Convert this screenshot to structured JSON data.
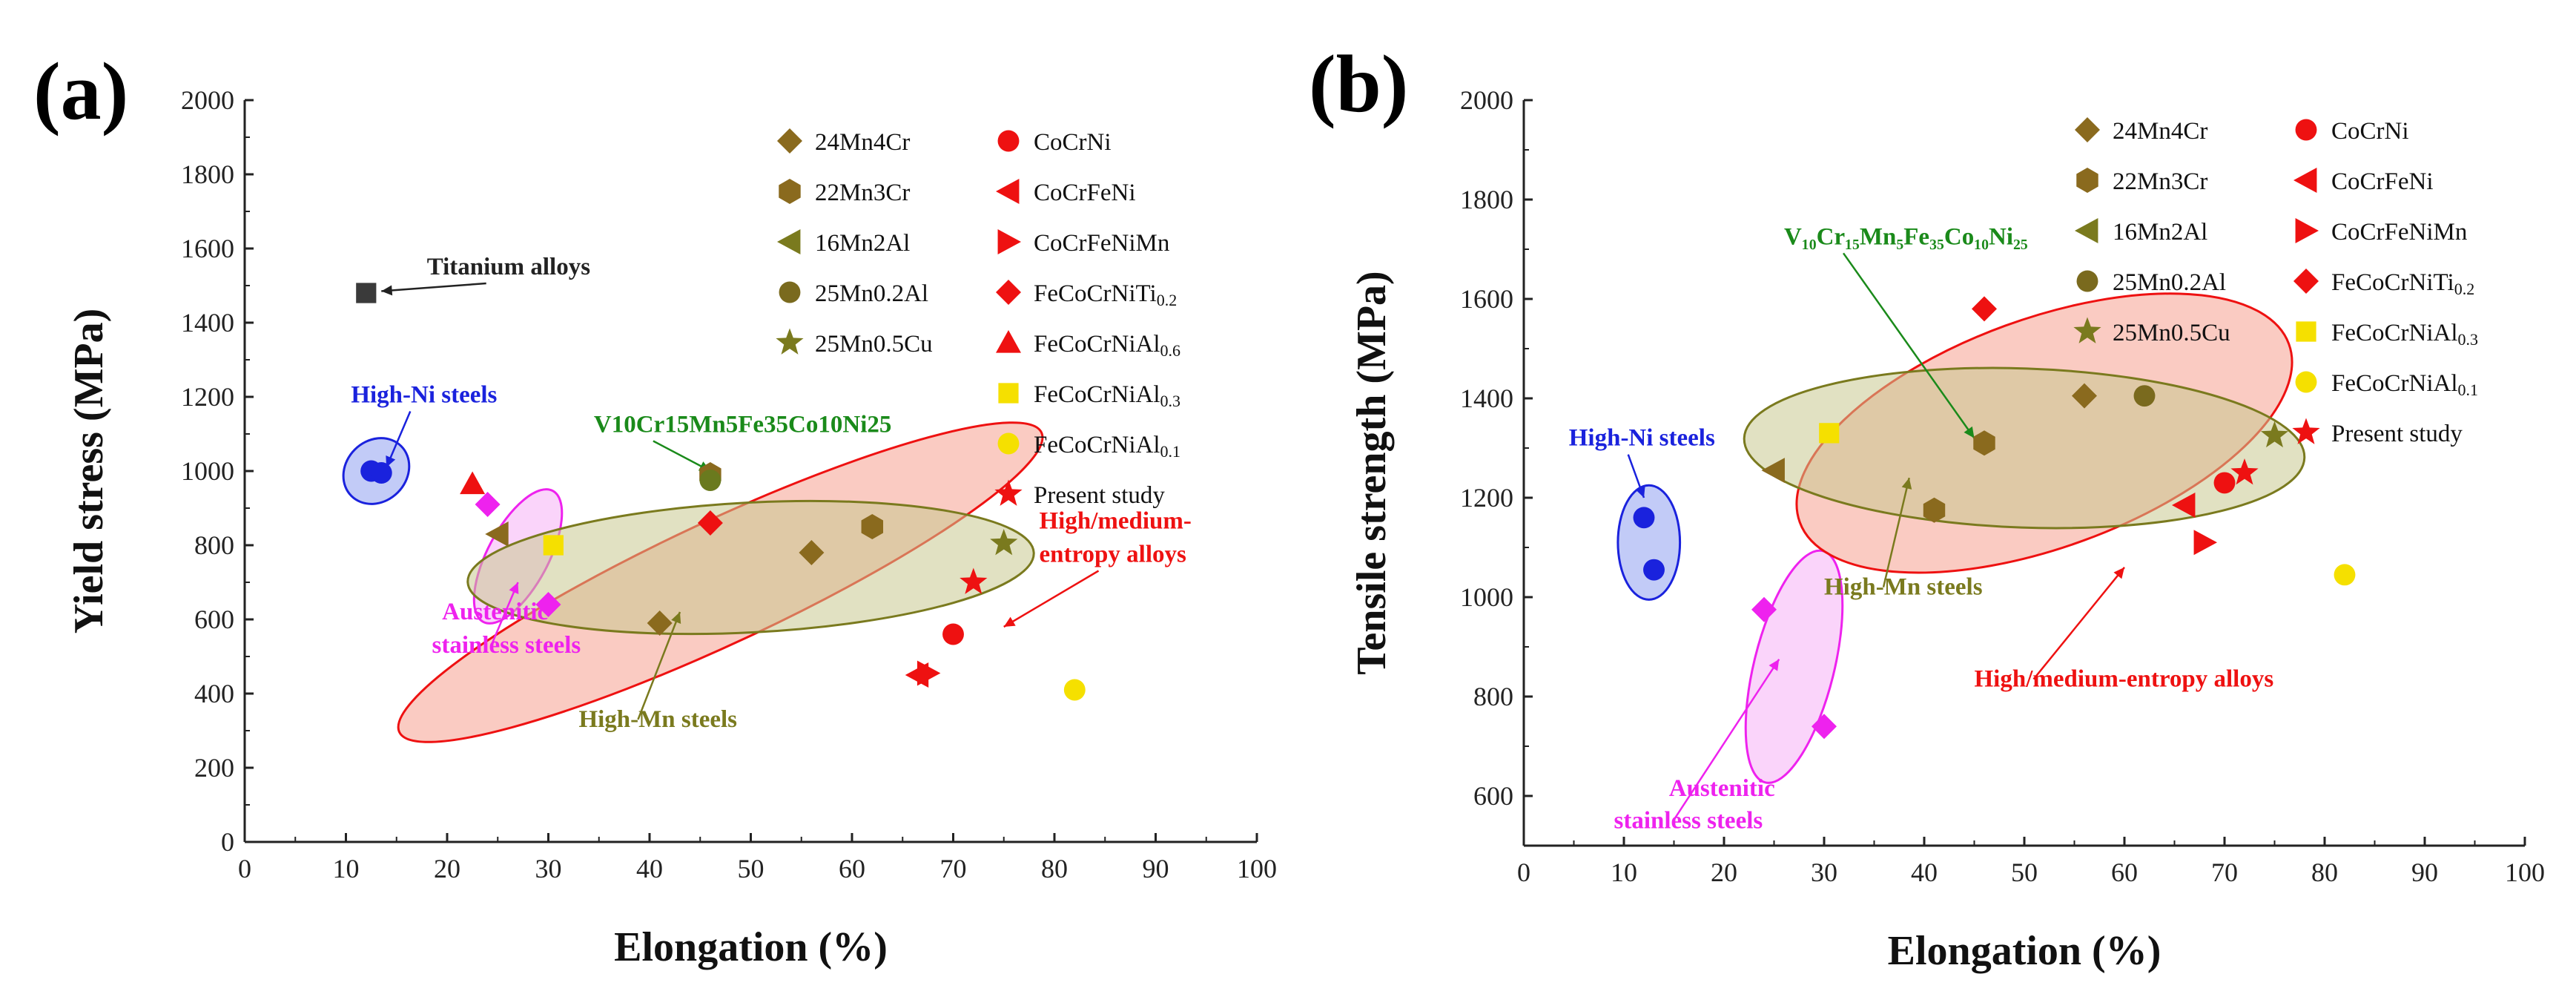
{
  "figure_title": "",
  "colors": {
    "olive": "#7a7a1e",
    "olive_fill": "#8f8f2a",
    "red": "#ee1111",
    "yellow": "#f5e000",
    "gray": "#3a3a3a",
    "blue": "#1a22dd",
    "magenta": "#ee22ee",
    "green": "#1a8a1a"
  },
  "chart_data": [
    {
      "type": "scatter",
      "panel_label": "(a)",
      "title": "",
      "xlabel": "Elongation (%)",
      "ylabel": "Yield stress (MPa)",
      "xlim": [
        0,
        100
      ],
      "ylim": [
        0,
        2000
      ],
      "xticks": [
        "0",
        "10",
        "20",
        "30",
        "40",
        "50",
        "60",
        "70",
        "80",
        "90",
        "100"
      ],
      "yticks": [
        "0",
        "200",
        "400",
        "600",
        "800",
        "1000",
        "1200",
        "1400",
        "1600",
        "1800",
        "2000"
      ],
      "grid": false,
      "legend_position": "top-right",
      "legend": [
        {
          "name": "24Mn4Cr",
          "marker": "diamond",
          "color": "#8a6a1e"
        },
        {
          "name": "22Mn3Cr",
          "marker": "hexagon",
          "color": "#8a6a1e"
        },
        {
          "name": "16Mn2Al",
          "marker": "triangle-left",
          "color": "#7a7a1e"
        },
        {
          "name": "25Mn0.2Al",
          "marker": "circle",
          "color": "#7a6a1e"
        },
        {
          "name": "25Mn0.5Cu",
          "marker": "star",
          "color": "#7a7a1e"
        },
        {
          "name": "CoCrNi",
          "marker": "circle",
          "color": "#ee1111"
        },
        {
          "name": "CoCrFeNi",
          "marker": "triangle-left",
          "color": "#ee1111"
        },
        {
          "name": "CoCrFeNiMn",
          "marker": "triangle-right",
          "color": "#ee1111"
        },
        {
          "name": "FeCoCrNiTi",
          "sub": "0.2",
          "marker": "diamond",
          "color": "#ee1111"
        },
        {
          "name": "FeCoCrNiAl",
          "sub": "0.6",
          "marker": "triangle-up",
          "color": "#ee1111"
        },
        {
          "name": "FeCoCrNiAl",
          "sub": "0.3",
          "marker": "square",
          "color": "#f5e000"
        },
        {
          "name": "FeCoCrNiAl",
          "sub": "0.1",
          "marker": "circle",
          "color": "#f5e000"
        },
        {
          "name": "Present study",
          "marker": "star",
          "color": "#ee1111"
        }
      ],
      "series": [
        {
          "name": "Titanium alloys",
          "marker": "square",
          "color": "#3a3a3a",
          "points": [
            [
              12,
              1480
            ]
          ]
        },
        {
          "name": "High-Ni steels",
          "marker": "circle",
          "color": "#1a22dd",
          "points": [
            [
              12.5,
              1000
            ],
            [
              13.5,
              995
            ]
          ]
        },
        {
          "name": "Austenitic stainless steels",
          "marker": "diamond",
          "color": "#ee22ee",
          "points": [
            [
              24,
              910
            ],
            [
              30,
              640
            ]
          ]
        },
        {
          "name": "24Mn4Cr",
          "marker": "diamond",
          "color": "#8a6a1e",
          "points": [
            [
              41,
              590
            ],
            [
              56,
              780
            ]
          ]
        },
        {
          "name": "22Mn3Cr",
          "marker": "hexagon",
          "color": "#8a6a1e",
          "points": [
            [
              46,
              990
            ],
            [
              62,
              850
            ]
          ]
        },
        {
          "name": "16Mn2Al",
          "marker": "triangle-left",
          "color": "#8a6a1e",
          "points": [
            [
              25,
              830
            ]
          ]
        },
        {
          "name": "25Mn0.2Al",
          "marker": "circle",
          "color": "#6a7a1e",
          "points": [
            [
              46,
              975
            ]
          ]
        },
        {
          "name": "25Mn0.5Cu",
          "marker": "star",
          "color": "#7a7a1e",
          "points": [
            [
              75,
              805
            ]
          ]
        },
        {
          "name": "CoCrNi",
          "marker": "circle",
          "color": "#ee1111",
          "points": [
            [
              70,
              560
            ]
          ]
        },
        {
          "name": "CoCrFeNi",
          "marker": "triangle-left",
          "color": "#ee1111",
          "points": [
            [
              66.5,
              450
            ]
          ]
        },
        {
          "name": "CoCrFeNiMn",
          "marker": "triangle-right",
          "color": "#ee1111",
          "points": [
            [
              67.5,
              455
            ]
          ]
        },
        {
          "name": "FeCoCrNiTi0.2",
          "marker": "diamond",
          "color": "#ee1111",
          "points": [
            [
              46,
              860
            ]
          ]
        },
        {
          "name": "FeCoCrNiAl0.6",
          "marker": "triangle-up",
          "color": "#ee1111",
          "points": [
            [
              22.5,
              965
            ]
          ]
        },
        {
          "name": "FeCoCrNiAl0.3",
          "marker": "square",
          "color": "#f5e000",
          "points": [
            [
              30.5,
              800
            ]
          ]
        },
        {
          "name": "FeCoCrNiAl0.1",
          "marker": "circle",
          "color": "#f5e000",
          "points": [
            [
              82,
              410
            ]
          ]
        },
        {
          "name": "Present study",
          "marker": "star",
          "color": "#ee1111",
          "points": [
            [
              72,
              700
            ]
          ]
        }
      ],
      "regions": [
        {
          "name": "High-Ni steels",
          "center": [
            13,
            1000
          ],
          "rx": 3,
          "ry": 95,
          "rotate": -45,
          "fill": "#8fa0f0",
          "stroke": "#1a22dd"
        },
        {
          "name": "Austenitic stainless steels",
          "center": [
            27,
            770
          ],
          "rx": 3,
          "ry": 200,
          "rotate": -28,
          "fill": "#f5b0f5",
          "stroke": "#ee22ee"
        },
        {
          "name": "High/medium-entropy alloys",
          "center": [
            47,
            700
          ],
          "rx": 35,
          "ry": 165,
          "rotate": 25,
          "fill": "#f5a090",
          "stroke": "#ee1111"
        },
        {
          "name": "High-Mn steels",
          "center": [
            50,
            740
          ],
          "rx": 28,
          "ry": 175,
          "rotate": 3,
          "fill": "#c8c890",
          "stroke": "#7a7a1e"
        }
      ],
      "annotations": [
        {
          "text": "Titanium alloys",
          "color": "#222222",
          "at": [
            18,
            1530
          ],
          "arrow_to": [
            13.5,
            1485
          ]
        },
        {
          "text": "High-Ni steels",
          "color": "#1a22dd",
          "at": [
            10.5,
            1185
          ],
          "arrow_to": [
            14,
            1010
          ]
        },
        {
          "text": "V10Cr15Mn5Fe35Co10Ni25",
          "color": "#1a8a1a",
          "at": [
            34.5,
            1105
          ],
          "arrow_to": [
            46,
            1000
          ]
        },
        {
          "text": "High/medium-",
          "color": "#ee1111",
          "at": [
            78.5,
            845
          ]
        },
        {
          "text": "entropy alloys",
          "color": "#ee1111",
          "at": [
            78.5,
            755
          ],
          "arrow_to": [
            75,
            580
          ]
        },
        {
          "text": "Austenitic",
          "color": "#ee22ee",
          "at": [
            19.5,
            600
          ]
        },
        {
          "text": "stainless steels",
          "color": "#ee22ee",
          "at": [
            18.5,
            510
          ],
          "arrow_to": [
            27,
            700
          ]
        },
        {
          "text": "High-Mn steels",
          "color": "#7a7a1e",
          "at": [
            33,
            310
          ],
          "arrow_to": [
            43,
            620
          ]
        }
      ]
    },
    {
      "type": "scatter",
      "panel_label": "(b)",
      "title": "",
      "xlabel": "Elongation (%)",
      "ylabel": "Tensile strength (MPa)",
      "xlim": [
        0,
        100
      ],
      "ylim": [
        500,
        2000
      ],
      "xticks": [
        "0",
        "10",
        "20",
        "30",
        "40",
        "50",
        "60",
        "70",
        "80",
        "90",
        "100"
      ],
      "yticks": [
        "600",
        "800",
        "1000",
        "1200",
        "1400",
        "1600",
        "1800",
        "2000"
      ],
      "grid": false,
      "legend_position": "top-right",
      "legend": [
        {
          "name": "24Mn4Cr",
          "marker": "diamond",
          "color": "#8a6a1e"
        },
        {
          "name": "22Mn3Cr",
          "marker": "hexagon",
          "color": "#8a6a1e"
        },
        {
          "name": "16Mn2Al",
          "marker": "triangle-left",
          "color": "#7a7a1e"
        },
        {
          "name": "25Mn0.2Al",
          "marker": "circle",
          "color": "#7a6a1e"
        },
        {
          "name": "25Mn0.5Cu",
          "marker": "star",
          "color": "#7a7a1e"
        },
        {
          "name": "CoCrNi",
          "marker": "circle",
          "color": "#ee1111"
        },
        {
          "name": "CoCrFeNi",
          "marker": "triangle-left",
          "color": "#ee1111"
        },
        {
          "name": "CoCrFeNiMn",
          "marker": "triangle-right",
          "color": "#ee1111"
        },
        {
          "name": "FeCoCrNiTi",
          "sub": "0.2",
          "marker": "diamond",
          "color": "#ee1111"
        },
        {
          "name": "FeCoCrNiAl",
          "sub": "0.3",
          "marker": "square",
          "color": "#f5e000"
        },
        {
          "name": "FeCoCrNiAl",
          "sub": "0.1",
          "marker": "circle",
          "color": "#f5e000"
        },
        {
          "name": "Present study",
          "marker": "star",
          "color": "#ee1111"
        }
      ],
      "series": [
        {
          "name": "High-Ni steels",
          "marker": "circle",
          "color": "#1a22dd",
          "points": [
            [
              12,
              1160
            ],
            [
              13,
              1055
            ]
          ]
        },
        {
          "name": "Austenitic stainless steels",
          "marker": "diamond",
          "color": "#ee22ee",
          "points": [
            [
              24,
              975
            ],
            [
              30,
              740
            ]
          ]
        },
        {
          "name": "24Mn4Cr",
          "marker": "diamond",
          "color": "#8a6a1e",
          "points": [
            [
              56,
              1405
            ]
          ]
        },
        {
          "name": "22Mn3Cr",
          "marker": "hexagon",
          "color": "#8a6a1e",
          "points": [
            [
              41,
              1175
            ],
            [
              46,
              1310
            ]
          ]
        },
        {
          "name": "16Mn2Al",
          "marker": "triangle-left",
          "color": "#8a6a1e",
          "points": [
            [
              25,
              1255
            ]
          ]
        },
        {
          "name": "25Mn0.2Al",
          "marker": "circle",
          "color": "#7a6a1e",
          "points": [
            [
              62,
              1405
            ]
          ]
        },
        {
          "name": "25Mn0.5Cu",
          "marker": "star",
          "color": "#7a7a1e",
          "points": [
            [
              75,
              1325
            ]
          ]
        },
        {
          "name": "CoCrNi",
          "marker": "circle",
          "color": "#ee1111",
          "points": [
            [
              70,
              1230
            ]
          ]
        },
        {
          "name": "CoCrFeNi",
          "marker": "triangle-left",
          "color": "#ee1111",
          "points": [
            [
              66,
              1185
            ]
          ]
        },
        {
          "name": "CoCrFeNiMn",
          "marker": "triangle-right",
          "color": "#ee1111",
          "points": [
            [
              68,
              1110
            ]
          ]
        },
        {
          "name": "FeCoCrNiTi0.2",
          "marker": "diamond",
          "color": "#ee1111",
          "points": [
            [
              46,
              1580
            ]
          ]
        },
        {
          "name": "FeCoCrNiAl0.3",
          "marker": "square",
          "color": "#f5e000",
          "points": [
            [
              30.5,
              1330
            ]
          ]
        },
        {
          "name": "FeCoCrNiAl0.1",
          "marker": "circle",
          "color": "#f5e000",
          "points": [
            [
              82,
              1045
            ]
          ]
        },
        {
          "name": "Present study",
          "marker": "star",
          "color": "#ee1111",
          "points": [
            [
              72,
              1250
            ]
          ]
        }
      ],
      "regions": [
        {
          "name": "High-Ni steels",
          "center": [
            12.5,
            1110
          ],
          "rx": 3.1,
          "ry": 115,
          "rotate": 0,
          "fill": "#8fa0f0",
          "stroke": "#1a22dd"
        },
        {
          "name": "Austenitic stainless steels",
          "center": [
            27,
            860
          ],
          "rx": 4,
          "ry": 240,
          "rotate": -14,
          "fill": "#f5b0f5",
          "stroke": "#ee22ee"
        },
        {
          "name": "High/medium-entropy alloys",
          "center": [
            52,
            1330
          ],
          "rx": 26,
          "ry": 230,
          "rotate": 20,
          "fill": "#f5a090",
          "stroke": "#ee1111"
        },
        {
          "name": "High-Mn steels",
          "center": [
            50,
            1300
          ],
          "rx": 28,
          "ry": 160,
          "rotate": -2,
          "fill": "#c8c890",
          "stroke": "#7a7a1e"
        }
      ],
      "annotations": [
        {
          "text": "V₁₀Cr₁₅Mn₅Fe₃₅Co₁₀Ni₂₅",
          "color": "#1a8a1a",
          "at": [
            26,
            1710
          ],
          "arrow_to": [
            45,
            1320
          ]
        },
        {
          "text": "High-Ni steels",
          "color": "#1a22dd",
          "at": [
            4.5,
            1305
          ],
          "arrow_to": [
            12,
            1200
          ]
        },
        {
          "text": "High-Mn steels",
          "color": "#7a7a1e",
          "at": [
            30,
            1005
          ],
          "arrow_to": [
            38.5,
            1240
          ]
        },
        {
          "text": "High/medium-entropy alloys",
          "color": "#ee1111",
          "at": [
            45,
            820
          ],
          "arrow_to": [
            60,
            1060
          ]
        },
        {
          "text": "Austenitic",
          "color": "#ee22ee",
          "at": [
            14.5,
            600
          ]
        },
        {
          "text": "stainless steels",
          "color": "#ee22ee",
          "at": [
            9,
            535
          ],
          "arrow_to": [
            25.5,
            875
          ]
        }
      ]
    }
  ]
}
